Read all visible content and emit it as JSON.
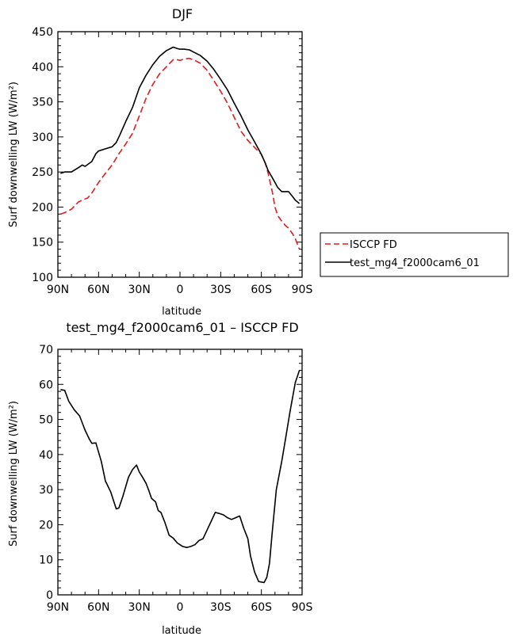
{
  "chart_data": [
    {
      "type": "line",
      "title": "DJF",
      "xlabel": "latitude",
      "ylabel": "Surf downwelling LW (W/m²)",
      "xlim": [
        -90,
        90
      ],
      "ylim": [
        100,
        450
      ],
      "x_tick_labels": [
        "90N",
        "60N",
        "30N",
        "0",
        "30S",
        "60S",
        "90S"
      ],
      "y_tick_labels": [
        "100",
        "150",
        "200",
        "250",
        "300",
        "350",
        "400",
        "450"
      ],
      "legend_position": "right",
      "series": [
        {
          "name": "ISCCP FD",
          "color": "#e41a1c",
          "dash": "dashed",
          "x": [
            -88,
            -85,
            -80,
            -75,
            -72,
            -68,
            -65,
            -60,
            -55,
            -50,
            -45,
            -40,
            -35,
            -30,
            -25,
            -20,
            -15,
            -10,
            -5,
            -2,
            0,
            3,
            7,
            10,
            15,
            20,
            25,
            30,
            35,
            40,
            45,
            50,
            55,
            60,
            63,
            65,
            68,
            70,
            72,
            75,
            78,
            80,
            83,
            85,
            88
          ],
          "y": [
            190,
            192,
            197,
            207,
            210,
            213,
            220,
            235,
            248,
            260,
            276,
            290,
            305,
            330,
            355,
            375,
            390,
            400,
            410,
            410,
            409,
            411,
            412,
            410,
            405,
            395,
            380,
            365,
            348,
            328,
            308,
            295,
            285,
            275,
            262,
            248,
            222,
            200,
            188,
            180,
            173,
            170,
            162,
            155,
            140
          ]
        },
        {
          "name": "test_mg4_f2000cam6_01",
          "color": "#000000",
          "dash": "solid",
          "x": [
            -88,
            -85,
            -80,
            -75,
            -72,
            -70,
            -65,
            -62,
            -60,
            -55,
            -50,
            -47,
            -45,
            -40,
            -35,
            -30,
            -25,
            -20,
            -15,
            -10,
            -5,
            -2,
            0,
            3,
            7,
            10,
            15,
            20,
            25,
            30,
            35,
            40,
            45,
            50,
            55,
            60,
            63,
            65,
            68,
            70,
            72,
            75,
            80,
            83,
            85,
            88
          ],
          "y": [
            248,
            250,
            250,
            256,
            260,
            258,
            265,
            276,
            280,
            283,
            286,
            292,
            300,
            322,
            342,
            370,
            388,
            403,
            415,
            423,
            428,
            426,
            425,
            425,
            424,
            421,
            416,
            408,
            396,
            382,
            367,
            348,
            330,
            310,
            293,
            275,
            262,
            252,
            242,
            235,
            228,
            222,
            222,
            215,
            210,
            205
          ]
        }
      ]
    },
    {
      "type": "line",
      "title": "test_mg4_f2000cam6_01 – ISCCP FD",
      "xlabel": "latitude",
      "ylabel": "Surf downwelling LW (W/m²)",
      "xlim": [
        -90,
        90
      ],
      "ylim": [
        0,
        70
      ],
      "x_tick_labels": [
        "90N",
        "60N",
        "30N",
        "0",
        "30S",
        "60S",
        "90S"
      ],
      "y_tick_labels": [
        "0",
        "10",
        "20",
        "30",
        "40",
        "50",
        "60",
        "70"
      ],
      "series": [
        {
          "color": "#000000",
          "dash": "solid",
          "x": [
            -88,
            -85,
            -82,
            -78,
            -74,
            -70,
            -67,
            -65,
            -62,
            -58,
            -55,
            -51,
            -47,
            -45,
            -42,
            -38,
            -35,
            -32,
            -30,
            -28,
            -25,
            -23,
            -21,
            -18,
            -16,
            -14,
            -11,
            -8,
            -5,
            -2,
            0,
            2,
            5,
            8,
            11,
            14,
            17,
            20,
            23,
            26,
            29,
            32,
            35,
            38,
            41,
            44,
            47,
            50,
            52,
            55,
            58,
            62,
            64,
            66,
            68,
            71,
            75,
            78,
            81,
            85,
            88
          ],
          "y": [
            58.5,
            58.3,
            55.2,
            52.8,
            51.0,
            47.0,
            44.5,
            43.2,
            43.3,
            38.0,
            32.5,
            29.3,
            24.5,
            24.8,
            28.2,
            33.5,
            35.7,
            37.0,
            35.0,
            33.8,
            31.8,
            29.8,
            27.5,
            26.5,
            24.0,
            23.5,
            20.5,
            17.0,
            16.2,
            14.8,
            14.3,
            13.8,
            13.5,
            13.8,
            14.3,
            15.5,
            16.0,
            18.5,
            21.0,
            23.5,
            23.2,
            22.8,
            22.0,
            21.5,
            22.0,
            22.5,
            19.0,
            16.0,
            11.0,
            6.5,
            3.8,
            3.5,
            5.0,
            9.0,
            18.0,
            30.0,
            38.0,
            45.0,
            52.0,
            60.5,
            64.0
          ]
        }
      ]
    }
  ]
}
